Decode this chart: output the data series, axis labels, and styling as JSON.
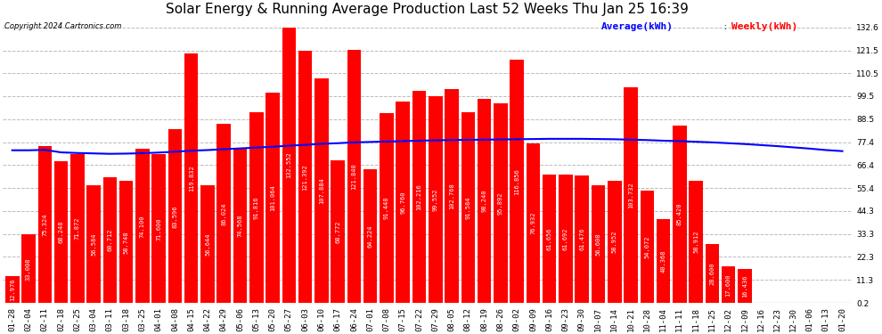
{
  "title": "Solar Energy & Running Average Production Last 52 Weeks Thu Jan 25 16:39",
  "copyright": "Copyright 2024 Cartronics.com",
  "legend_avg": "Average(kWh)",
  "legend_weekly": "Weekly(kWh)",
  "bar_color": "#FF0000",
  "avg_line_color": "#0000FF",
  "background_color": "#FFFFFF",
  "grid_color": "#BBBBBB",
  "categories": [
    "01-28",
    "02-04",
    "02-11",
    "02-18",
    "02-25",
    "03-04",
    "03-11",
    "03-18",
    "03-25",
    "04-01",
    "04-08",
    "04-15",
    "04-22",
    "04-29",
    "05-06",
    "05-13",
    "05-20",
    "05-27",
    "06-03",
    "06-10",
    "06-17",
    "06-24",
    "07-01",
    "07-08",
    "07-15",
    "07-22",
    "07-29",
    "08-05",
    "08-12",
    "08-19",
    "08-26",
    "09-02",
    "09-09",
    "09-16",
    "09-23",
    "09-30",
    "10-07",
    "10-14",
    "10-21",
    "10-28",
    "11-04",
    "11-11",
    "11-18",
    "11-25",
    "12-02",
    "12-09",
    "12-16",
    "12-23",
    "12-30",
    "01-06",
    "01-13",
    "01-20"
  ],
  "weekly_values": [
    12.976,
    33.008,
    75.324,
    68.248,
    71.872,
    56.584,
    60.712,
    58.748,
    74.1,
    71.6,
    83.596,
    119.832,
    56.644,
    86.024,
    74.568,
    91.816,
    101.064,
    132.552,
    121.392,
    107.884,
    68.772,
    121.84,
    64.224,
    91.448,
    96.76,
    102.216,
    99.552,
    102.768,
    91.584,
    98.24,
    95.892,
    116.856,
    76.932,
    61.656,
    61.692,
    61.476,
    56.608,
    58.952,
    103.732,
    54.072,
    40.368,
    85.42,
    58.912,
    28.6,
    17.6,
    16.436,
    0.0,
    0.0,
    0.0,
    0.0,
    0.0,
    0.0
  ],
  "avg_values": [
    73.5,
    73.5,
    73.7,
    72.5,
    72.2,
    72.0,
    71.8,
    71.9,
    72.1,
    72.4,
    72.8,
    73.3,
    73.6,
    74.0,
    74.4,
    74.8,
    75.2,
    75.7,
    76.1,
    76.6,
    76.9,
    77.3,
    77.5,
    77.7,
    77.9,
    78.1,
    78.3,
    78.4,
    78.5,
    78.6,
    78.7,
    78.8,
    78.9,
    79.0,
    79.0,
    79.0,
    78.9,
    78.8,
    78.6,
    78.4,
    78.1,
    77.9,
    77.6,
    77.3,
    76.9,
    76.5,
    76.0,
    75.5,
    74.9,
    74.3,
    73.6,
    73.1
  ],
  "yticks": [
    0.2,
    11.3,
    22.3,
    33.3,
    44.3,
    55.4,
    66.4,
    77.4,
    88.5,
    99.5,
    110.5,
    121.5,
    132.6
  ],
  "ylim": [
    0.0,
    137.0
  ],
  "title_fontsize": 11,
  "tick_fontsize": 6.5,
  "bar_label_fontsize": 5.0,
  "legend_fontsize": 8
}
